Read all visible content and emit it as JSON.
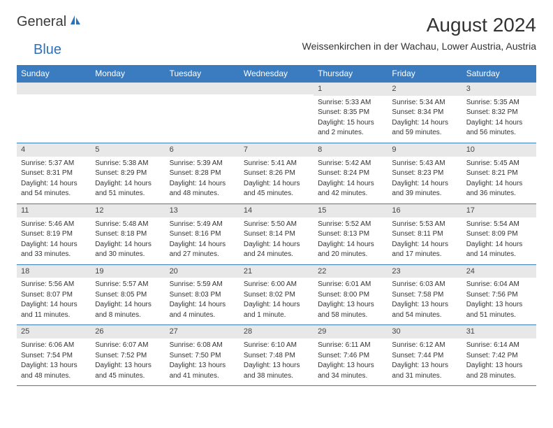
{
  "logo": {
    "general": "General",
    "blue": "Blue"
  },
  "title": "August 2024",
  "location": "Weissenkirchen in der Wachau, Lower Austria, Austria",
  "colors": {
    "header_bg": "#3a7cbf",
    "header_text": "#ffffff",
    "daynum_bg": "#e8e8e8",
    "text": "#333333",
    "logo_gray": "#3a3a3a",
    "logo_blue": "#2d72b8",
    "border": "#3a7cbf"
  },
  "weekdays": [
    "Sunday",
    "Monday",
    "Tuesday",
    "Wednesday",
    "Thursday",
    "Friday",
    "Saturday"
  ],
  "weeks": [
    [
      {
        "day": "",
        "sunrise": "",
        "sunset": "",
        "daylight1": "",
        "daylight2": ""
      },
      {
        "day": "",
        "sunrise": "",
        "sunset": "",
        "daylight1": "",
        "daylight2": ""
      },
      {
        "day": "",
        "sunrise": "",
        "sunset": "",
        "daylight1": "",
        "daylight2": ""
      },
      {
        "day": "",
        "sunrise": "",
        "sunset": "",
        "daylight1": "",
        "daylight2": ""
      },
      {
        "day": "1",
        "sunrise": "Sunrise: 5:33 AM",
        "sunset": "Sunset: 8:35 PM",
        "daylight1": "Daylight: 15 hours",
        "daylight2": "and 2 minutes."
      },
      {
        "day": "2",
        "sunrise": "Sunrise: 5:34 AM",
        "sunset": "Sunset: 8:34 PM",
        "daylight1": "Daylight: 14 hours",
        "daylight2": "and 59 minutes."
      },
      {
        "day": "3",
        "sunrise": "Sunrise: 5:35 AM",
        "sunset": "Sunset: 8:32 PM",
        "daylight1": "Daylight: 14 hours",
        "daylight2": "and 56 minutes."
      }
    ],
    [
      {
        "day": "4",
        "sunrise": "Sunrise: 5:37 AM",
        "sunset": "Sunset: 8:31 PM",
        "daylight1": "Daylight: 14 hours",
        "daylight2": "and 54 minutes."
      },
      {
        "day": "5",
        "sunrise": "Sunrise: 5:38 AM",
        "sunset": "Sunset: 8:29 PM",
        "daylight1": "Daylight: 14 hours",
        "daylight2": "and 51 minutes."
      },
      {
        "day": "6",
        "sunrise": "Sunrise: 5:39 AM",
        "sunset": "Sunset: 8:28 PM",
        "daylight1": "Daylight: 14 hours",
        "daylight2": "and 48 minutes."
      },
      {
        "day": "7",
        "sunrise": "Sunrise: 5:41 AM",
        "sunset": "Sunset: 8:26 PM",
        "daylight1": "Daylight: 14 hours",
        "daylight2": "and 45 minutes."
      },
      {
        "day": "8",
        "sunrise": "Sunrise: 5:42 AM",
        "sunset": "Sunset: 8:24 PM",
        "daylight1": "Daylight: 14 hours",
        "daylight2": "and 42 minutes."
      },
      {
        "day": "9",
        "sunrise": "Sunrise: 5:43 AM",
        "sunset": "Sunset: 8:23 PM",
        "daylight1": "Daylight: 14 hours",
        "daylight2": "and 39 minutes."
      },
      {
        "day": "10",
        "sunrise": "Sunrise: 5:45 AM",
        "sunset": "Sunset: 8:21 PM",
        "daylight1": "Daylight: 14 hours",
        "daylight2": "and 36 minutes."
      }
    ],
    [
      {
        "day": "11",
        "sunrise": "Sunrise: 5:46 AM",
        "sunset": "Sunset: 8:19 PM",
        "daylight1": "Daylight: 14 hours",
        "daylight2": "and 33 minutes."
      },
      {
        "day": "12",
        "sunrise": "Sunrise: 5:48 AM",
        "sunset": "Sunset: 8:18 PM",
        "daylight1": "Daylight: 14 hours",
        "daylight2": "and 30 minutes."
      },
      {
        "day": "13",
        "sunrise": "Sunrise: 5:49 AM",
        "sunset": "Sunset: 8:16 PM",
        "daylight1": "Daylight: 14 hours",
        "daylight2": "and 27 minutes."
      },
      {
        "day": "14",
        "sunrise": "Sunrise: 5:50 AM",
        "sunset": "Sunset: 8:14 PM",
        "daylight1": "Daylight: 14 hours",
        "daylight2": "and 24 minutes."
      },
      {
        "day": "15",
        "sunrise": "Sunrise: 5:52 AM",
        "sunset": "Sunset: 8:13 PM",
        "daylight1": "Daylight: 14 hours",
        "daylight2": "and 20 minutes."
      },
      {
        "day": "16",
        "sunrise": "Sunrise: 5:53 AM",
        "sunset": "Sunset: 8:11 PM",
        "daylight1": "Daylight: 14 hours",
        "daylight2": "and 17 minutes."
      },
      {
        "day": "17",
        "sunrise": "Sunrise: 5:54 AM",
        "sunset": "Sunset: 8:09 PM",
        "daylight1": "Daylight: 14 hours",
        "daylight2": "and 14 minutes."
      }
    ],
    [
      {
        "day": "18",
        "sunrise": "Sunrise: 5:56 AM",
        "sunset": "Sunset: 8:07 PM",
        "daylight1": "Daylight: 14 hours",
        "daylight2": "and 11 minutes."
      },
      {
        "day": "19",
        "sunrise": "Sunrise: 5:57 AM",
        "sunset": "Sunset: 8:05 PM",
        "daylight1": "Daylight: 14 hours",
        "daylight2": "and 8 minutes."
      },
      {
        "day": "20",
        "sunrise": "Sunrise: 5:59 AM",
        "sunset": "Sunset: 8:03 PM",
        "daylight1": "Daylight: 14 hours",
        "daylight2": "and 4 minutes."
      },
      {
        "day": "21",
        "sunrise": "Sunrise: 6:00 AM",
        "sunset": "Sunset: 8:02 PM",
        "daylight1": "Daylight: 14 hours",
        "daylight2": "and 1 minute."
      },
      {
        "day": "22",
        "sunrise": "Sunrise: 6:01 AM",
        "sunset": "Sunset: 8:00 PM",
        "daylight1": "Daylight: 13 hours",
        "daylight2": "and 58 minutes."
      },
      {
        "day": "23",
        "sunrise": "Sunrise: 6:03 AM",
        "sunset": "Sunset: 7:58 PM",
        "daylight1": "Daylight: 13 hours",
        "daylight2": "and 54 minutes."
      },
      {
        "day": "24",
        "sunrise": "Sunrise: 6:04 AM",
        "sunset": "Sunset: 7:56 PM",
        "daylight1": "Daylight: 13 hours",
        "daylight2": "and 51 minutes."
      }
    ],
    [
      {
        "day": "25",
        "sunrise": "Sunrise: 6:06 AM",
        "sunset": "Sunset: 7:54 PM",
        "daylight1": "Daylight: 13 hours",
        "daylight2": "and 48 minutes."
      },
      {
        "day": "26",
        "sunrise": "Sunrise: 6:07 AM",
        "sunset": "Sunset: 7:52 PM",
        "daylight1": "Daylight: 13 hours",
        "daylight2": "and 45 minutes."
      },
      {
        "day": "27",
        "sunrise": "Sunrise: 6:08 AM",
        "sunset": "Sunset: 7:50 PM",
        "daylight1": "Daylight: 13 hours",
        "daylight2": "and 41 minutes."
      },
      {
        "day": "28",
        "sunrise": "Sunrise: 6:10 AM",
        "sunset": "Sunset: 7:48 PM",
        "daylight1": "Daylight: 13 hours",
        "daylight2": "and 38 minutes."
      },
      {
        "day": "29",
        "sunrise": "Sunrise: 6:11 AM",
        "sunset": "Sunset: 7:46 PM",
        "daylight1": "Daylight: 13 hours",
        "daylight2": "and 34 minutes."
      },
      {
        "day": "30",
        "sunrise": "Sunrise: 6:12 AM",
        "sunset": "Sunset: 7:44 PM",
        "daylight1": "Daylight: 13 hours",
        "daylight2": "and 31 minutes."
      },
      {
        "day": "31",
        "sunrise": "Sunrise: 6:14 AM",
        "sunset": "Sunset: 7:42 PM",
        "daylight1": "Daylight: 13 hours",
        "daylight2": "and 28 minutes."
      }
    ]
  ]
}
